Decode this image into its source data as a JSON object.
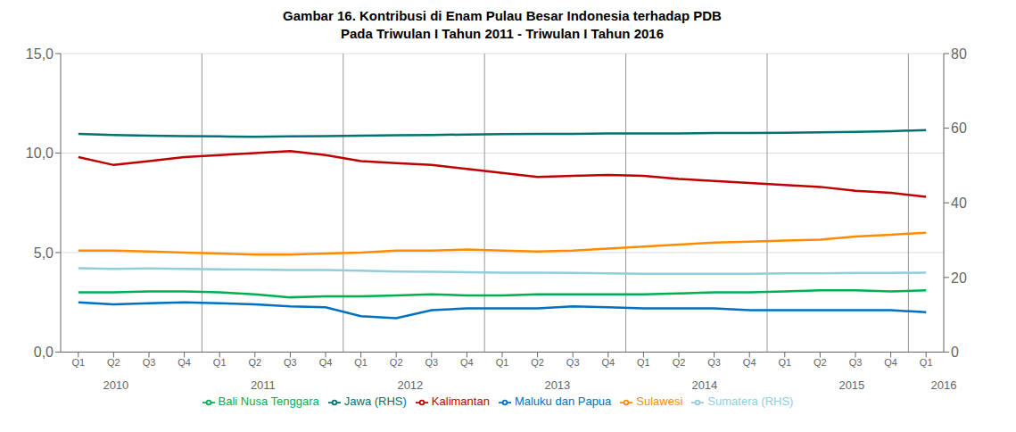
{
  "chart_data": {
    "type": "line",
    "title": "Gambar 16. Kontribusi di Enam Pulau Besar Indonesia terhadap PDB",
    "subtitle": "Pada Triwulan I Tahun 2011 - Triwulan I Tahun 2016",
    "categories": [
      "Q1",
      "Q2",
      "Q3",
      "Q4",
      "Q1",
      "Q2",
      "Q3",
      "Q4",
      "Q1",
      "Q2",
      "Q3",
      "Q4",
      "Q1",
      "Q2",
      "Q3",
      "Q4",
      "Q1",
      "Q2",
      "Q3",
      "Q4",
      "Q1",
      "Q2",
      "Q3",
      "Q4",
      "Q1"
    ],
    "annotations": [
      "2010",
      "2011",
      "2012",
      "2013",
      "2014",
      "2015",
      "2016"
    ],
    "series": [
      {
        "name": "Bali Nusa Tenggara",
        "color": "#00B050",
        "values": [
          3.0,
          3.0,
          3.05,
          3.05,
          3.0,
          2.9,
          2.75,
          2.8,
          2.8,
          2.85,
          2.9,
          2.85,
          2.85,
          2.9,
          2.9,
          2.9,
          2.9,
          2.95,
          3.0,
          3.0,
          3.05,
          3.1,
          3.1,
          3.05,
          3.1
        ]
      },
      {
        "name": "Maluku dan Papua",
        "color": "#0070C0",
        "values": [
          2.5,
          2.4,
          2.45,
          2.5,
          2.45,
          2.4,
          2.3,
          2.25,
          1.8,
          1.7,
          2.1,
          2.2,
          2.2,
          2.2,
          2.3,
          2.25,
          2.2,
          2.2,
          2.2,
          2.1,
          2.1,
          2.1,
          2.1,
          2.1,
          2.0
        ]
      },
      {
        "name": "Kalimantan",
        "color": "#C00000",
        "values": [
          9.8,
          9.4,
          9.6,
          9.8,
          9.9,
          10.0,
          10.1,
          9.9,
          9.6,
          9.5,
          9.4,
          9.2,
          9.0,
          8.8,
          8.85,
          8.9,
          8.85,
          8.7,
          8.6,
          8.5,
          8.4,
          8.3,
          8.1,
          8.0,
          7.8
        ]
      },
      {
        "name": "Sulawesi",
        "color": "#FF8C00",
        "values": [
          5.1,
          5.1,
          5.05,
          5.0,
          4.95,
          4.9,
          4.9,
          4.95,
          5.0,
          5.1,
          5.1,
          5.15,
          5.1,
          5.05,
          5.1,
          5.2,
          5.3,
          5.4,
          5.5,
          5.55,
          5.6,
          5.65,
          5.8,
          5.9,
          6.0
        ]
      },
      {
        "name": "Sumatera (RHS)",
        "color": "#92CDDC",
        "axis": "y2",
        "values": [
          22.5,
          22.3,
          22.4,
          22.3,
          22.2,
          22.1,
          22.0,
          22.0,
          21.8,
          21.6,
          21.5,
          21.4,
          21.3,
          21.3,
          21.2,
          21.1,
          21.0,
          21.0,
          21.0,
          21.0,
          21.1,
          21.1,
          21.2,
          21.2,
          21.3
        ]
      },
      {
        "name": "Jawa (RHS)",
        "color": "#007272",
        "axis": "y2",
        "values": [
          58.5,
          58.2,
          58.0,
          57.9,
          57.8,
          57.7,
          57.8,
          57.9,
          58.0,
          58.1,
          58.2,
          58.3,
          58.4,
          58.5,
          58.5,
          58.6,
          58.6,
          58.6,
          58.7,
          58.7,
          58.8,
          58.9,
          59.0,
          59.2,
          59.5
        ]
      }
    ],
    "ylim": [
      0,
      15
    ],
    "yticks": [
      {
        "value": 0,
        "label": "0,0"
      },
      {
        "value": 5,
        "label": "5,0"
      },
      {
        "value": 10,
        "label": "10,0"
      },
      {
        "value": 15,
        "label": "15,0"
      }
    ],
    "y2lim": [
      0,
      80
    ],
    "y2ticks": [
      0,
      20,
      40,
      60,
      80
    ],
    "grid": true,
    "legend": "bottom"
  }
}
